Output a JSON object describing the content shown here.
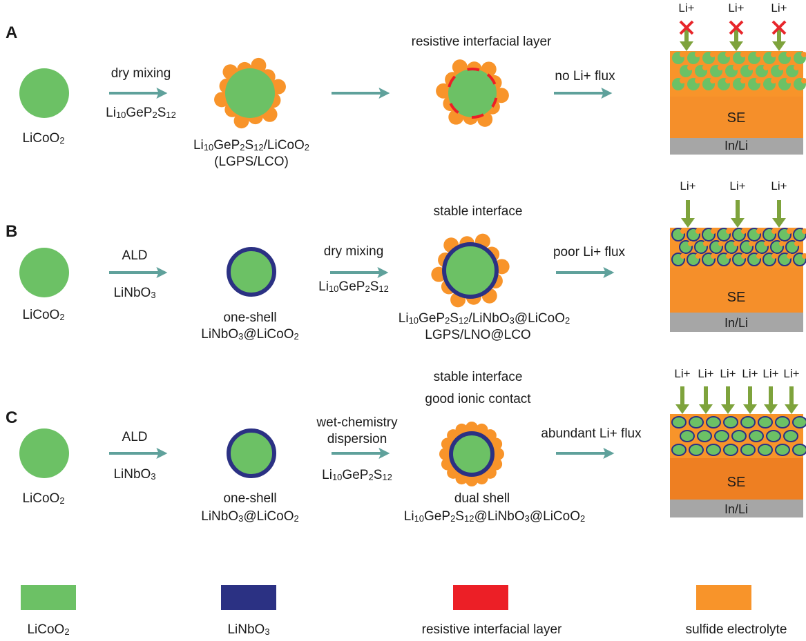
{
  "rows": [
    {
      "label": "A",
      "start_particle": "LiCoO2",
      "step1": {
        "top": "dry mixing",
        "bottom": "Li10GeP2S12"
      },
      "product": {
        "line1": "Li10GeP2S12/LiCoO2",
        "line2": "(LGPS/LCO)"
      },
      "interface_label": "resistive interfacial layer",
      "flux_label": "no Li+ flux",
      "li_labels": [
        "Li+",
        "Li+",
        "Li+"
      ],
      "se_label": "SE",
      "anode_label": "In/Li"
    },
    {
      "label": "B",
      "start_particle": "LiCoO2",
      "step1": {
        "top": "ALD",
        "bottom": "LiNbO3"
      },
      "intermediate": {
        "line1": "one-shell",
        "line2": "LiNbO3@LiCoO2"
      },
      "step2": {
        "top": "dry mixing",
        "bottom": "Li10GeP2S12"
      },
      "interface_label": "stable interface",
      "product": {
        "line1": "Li10GeP2S12/LiNbO3@LiCoO2",
        "line2": "LGPS/LNO@LCO"
      },
      "flux_label": "poor Li+ flux",
      "li_labels": [
        "Li+",
        "Li+",
        "Li+"
      ],
      "se_label": "SE",
      "anode_label": "In/Li"
    },
    {
      "label": "C",
      "start_particle": "LiCoO2",
      "step1": {
        "top": "ALD",
        "bottom": "LiNbO3"
      },
      "intermediate": {
        "line1": "one-shell",
        "line2": "LiNbO3@LiCoO2"
      },
      "step2": {
        "top1": "wet-chemistry",
        "top2": "dispersion",
        "bottom": "Li10GeP2S12"
      },
      "interface_label1": "stable interface",
      "interface_label2": "good ionic contact",
      "product": {
        "line1": "dual shell",
        "line2": "Li10GeP2S12@LiNbO3@LiCoO2"
      },
      "flux_label": "abundant Li+ flux",
      "li_labels": [
        "Li+",
        "Li+",
        "Li+",
        "Li+",
        "Li+",
        "Li+"
      ],
      "se_label": "SE",
      "anode_label": "In/Li"
    }
  ],
  "legend": [
    {
      "label": "LiCoO2",
      "color": "#6cc165"
    },
    {
      "label": "LiNbO3",
      "color": "#2b3183"
    },
    {
      "label": "resistive interfacial layer",
      "color": "#ec1f26"
    },
    {
      "label": "sulfide electrolyte",
      "color": "#f8942a"
    }
  ],
  "colors": {
    "lco": "#6cc165",
    "lno": "#2b3183",
    "resistive": "#ec1f26",
    "sulfide": "#f8942a",
    "se": "#f58f2a",
    "se_dark": "#ee7f22",
    "anode": "#a6a6a6",
    "arrow": "#5fa19b",
    "li_arrow": "#7ea33c",
    "cross": "#e8262b"
  }
}
